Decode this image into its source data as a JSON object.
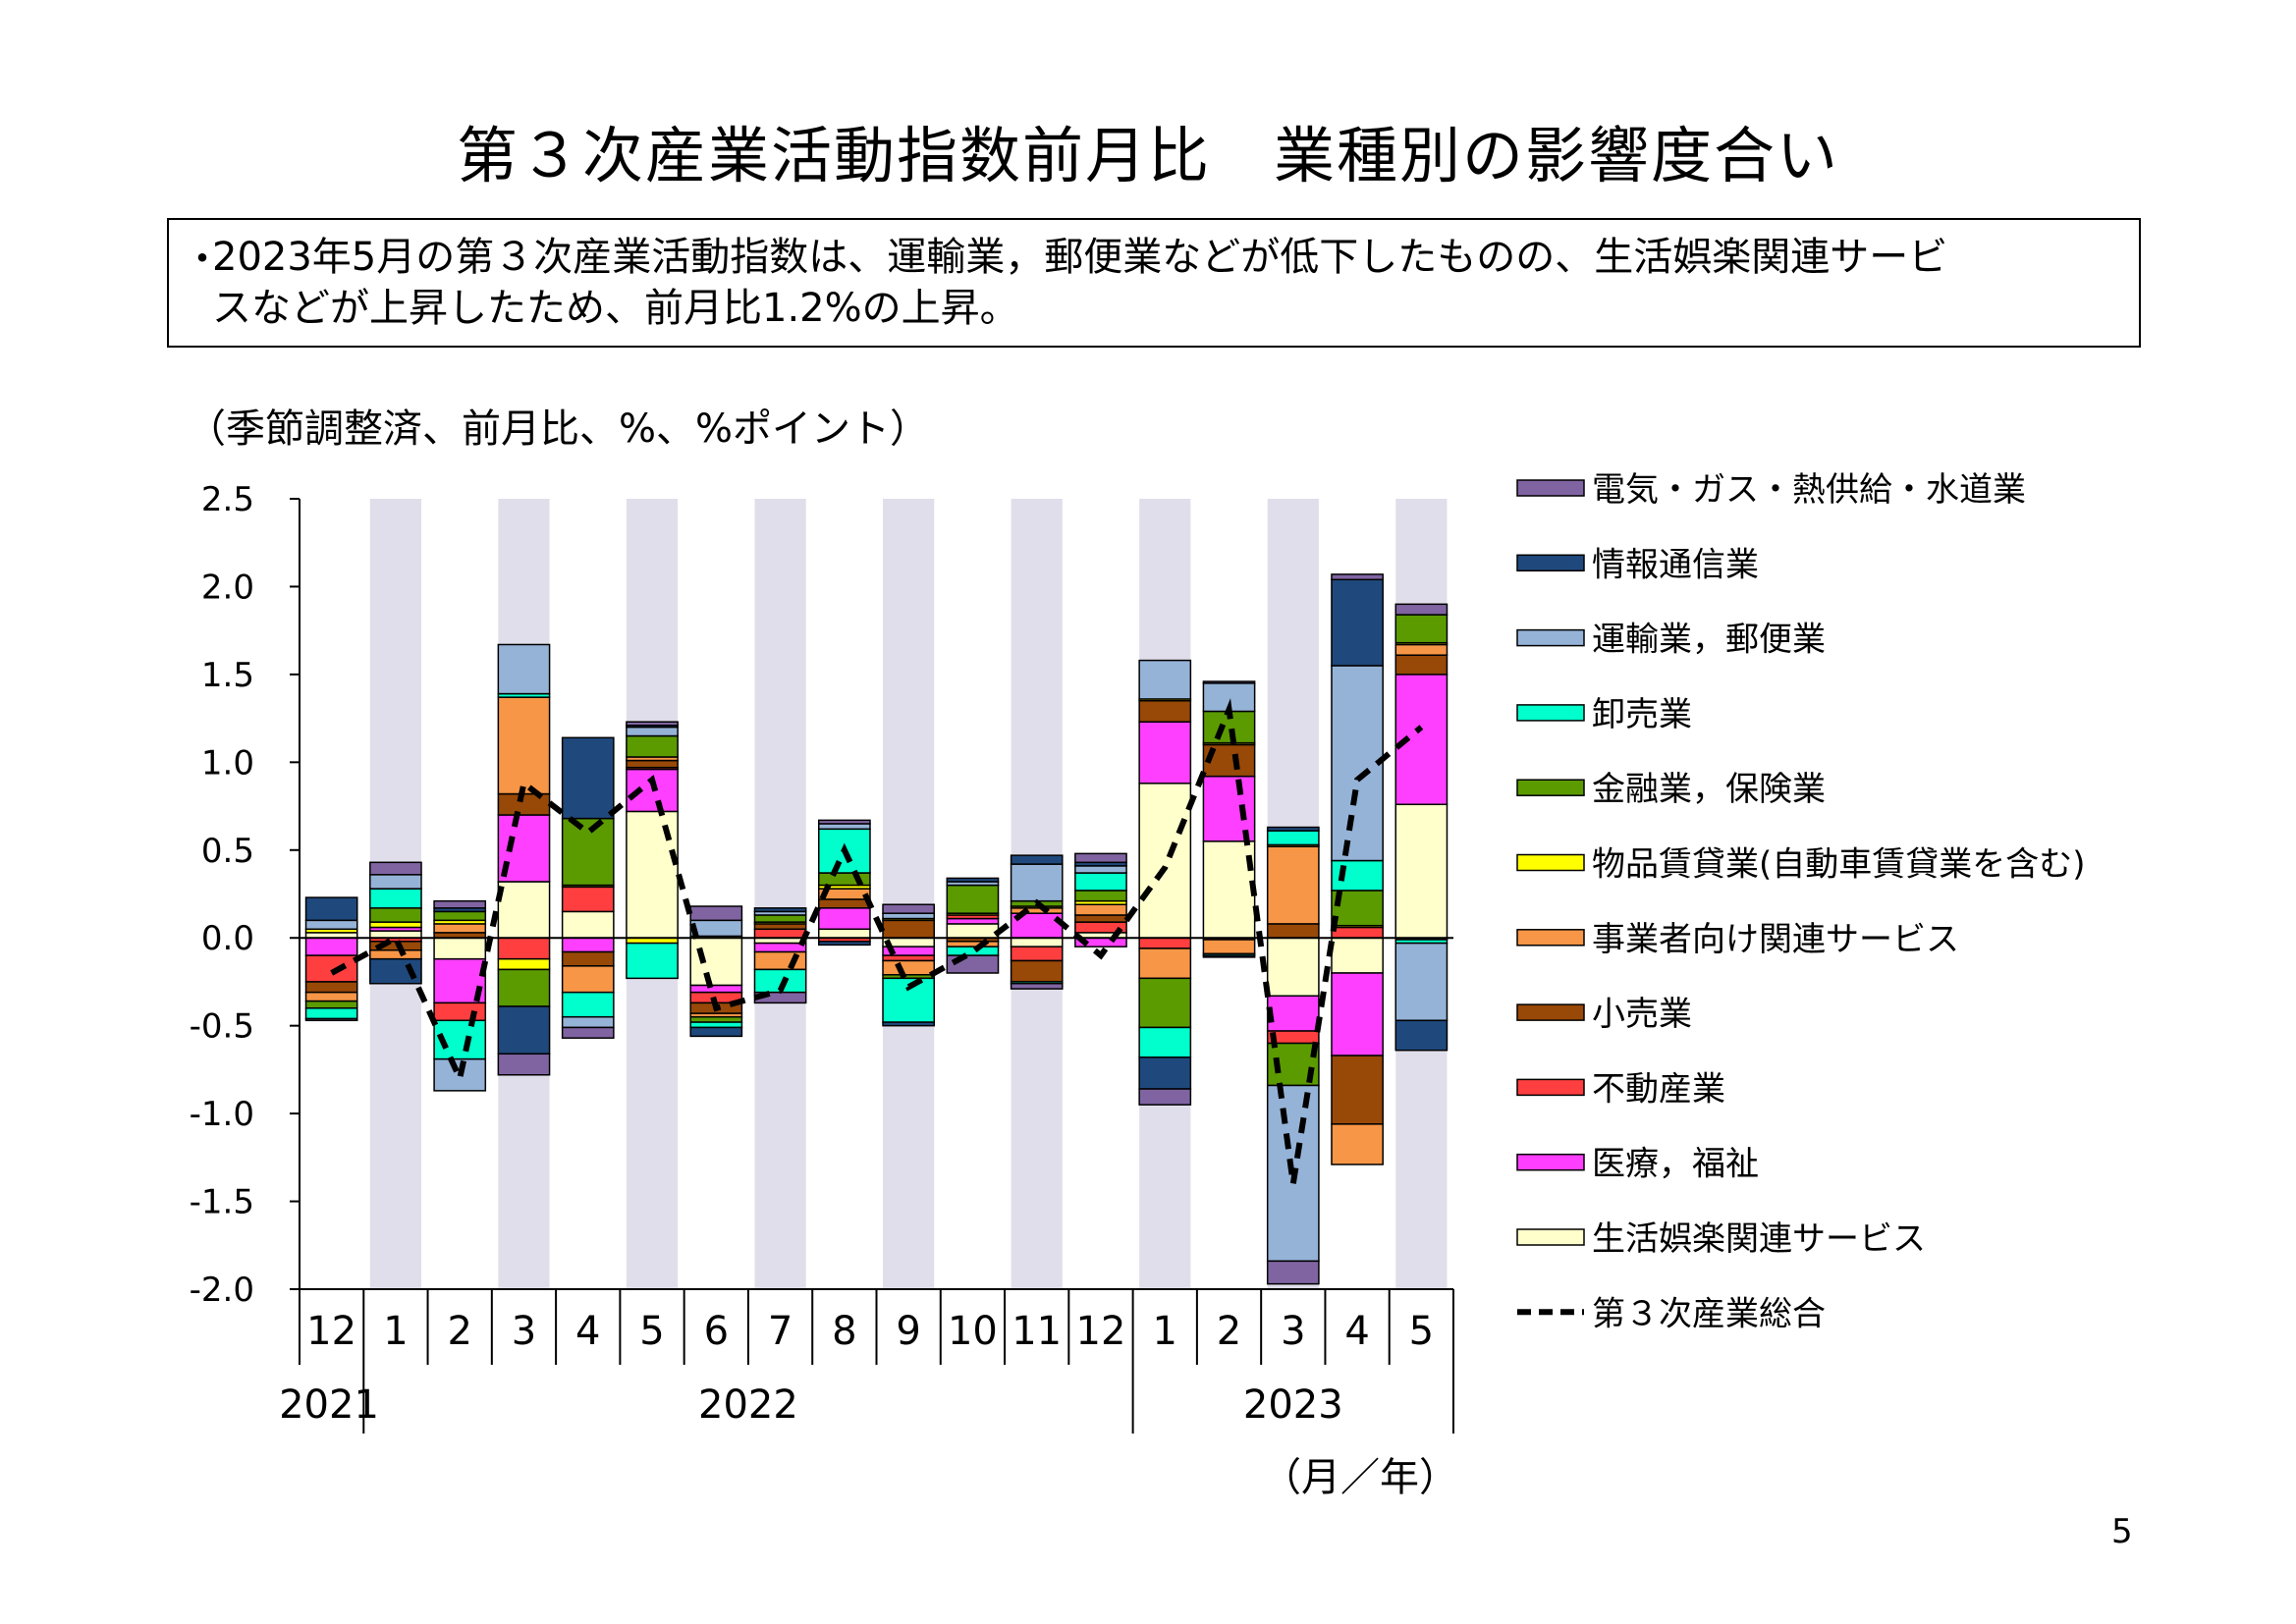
{
  "title": "第３次産業活動指数前月比　業種別の影響度合い",
  "note": {
    "bullet": "・",
    "line1": "2023年5月の第３次産業活動指数は、運輸業，郵便業などが低下したものの、生活娯楽関連サービ",
    "line2": "スなどが上昇したため、前月比1.2%の上昇。"
  },
  "unit_label": "（季節調整済、前月比、%、%ポイント）",
  "page_number": "5",
  "colors": {
    "electric": "#8064a2",
    "info": "#1f497d",
    "transport": "#95b3d7",
    "wholesale": "#00ffcc",
    "finance": "#5b9b00",
    "rental": "#ffff00",
    "business": "#f79646",
    "retail": "#984807",
    "realestate": "#ff3f3f",
    "medical": "#ff3fff",
    "lifestyle": "#ffffcc",
    "total": "#000000",
    "shade": "#e1deeb"
  },
  "chart_data": {
    "type": "bar",
    "stacked": true,
    "title": "",
    "ylabel": "（季節調整済、前月比、%、%ポイント）",
    "xlabel": "（月／年）",
    "ylim": [
      -2.0,
      2.5
    ],
    "yticks": [
      "2.5",
      "2.0",
      "1.5",
      "1.0",
      "0.5",
      "0.0",
      "-0.5",
      "-1.0",
      "-1.5",
      "-2.0"
    ],
    "ytick_values": [
      2.5,
      2.0,
      1.5,
      1.0,
      0.5,
      0.0,
      -0.5,
      -1.0,
      -1.5,
      -2.0
    ],
    "categories": [
      "12",
      "1",
      "2",
      "3",
      "4",
      "5",
      "6",
      "7",
      "8",
      "9",
      "10",
      "11",
      "12",
      "1",
      "2",
      "3",
      "4",
      "5"
    ],
    "years": [
      {
        "label": "2021",
        "start": 0,
        "end": 0
      },
      {
        "label": "2022",
        "start": 1,
        "end": 12
      },
      {
        "label": "2023",
        "start": 13,
        "end": 17
      }
    ],
    "shaded_indices": [
      1,
      3,
      5,
      7,
      9,
      11,
      13,
      15,
      17
    ],
    "x_unit": "（月／年）",
    "series": [
      {
        "key": "lifestyle",
        "name": "生活娯楽関連サービス",
        "values": [
          0.03,
          0.04,
          -0.12,
          0.32,
          0.15,
          0.72,
          -0.27,
          -0.03,
          0.05,
          -0.05,
          0.08,
          -0.05,
          0.03,
          0.88,
          0.55,
          -0.33,
          -0.2,
          0.76
        ]
      },
      {
        "key": "medical",
        "name": "医療，福祉",
        "values": [
          -0.1,
          0.02,
          -0.25,
          0.38,
          -0.08,
          0.24,
          -0.04,
          -0.05,
          0.12,
          -0.05,
          0.03,
          0.14,
          -0.05,
          0.35,
          0.37,
          -0.2,
          -0.47,
          0.74
        ]
      },
      {
        "key": "realestate",
        "name": "不動産業",
        "values": [
          -0.15,
          -0.02,
          -0.1,
          -0.12,
          0.14,
          0.01,
          -0.06,
          0.05,
          -0.02,
          -0.03,
          0.02,
          -0.08,
          0.06,
          -0.06,
          -0.01,
          -0.07,
          0.06,
          -0.01
        ]
      },
      {
        "key": "retail",
        "name": "小売業",
        "values": [
          -0.06,
          -0.05,
          0.03,
          0.12,
          -0.08,
          0.04,
          -0.06,
          0.03,
          0.05,
          0.1,
          -0.02,
          -0.12,
          0.04,
          0.12,
          0.18,
          0.08,
          -0.39,
          0.11
        ]
      },
      {
        "key": "business",
        "name": "事業者向け関連サービス",
        "values": [
          -0.05,
          -0.05,
          0.05,
          0.55,
          -0.15,
          0.02,
          -0.02,
          -0.1,
          0.06,
          -0.08,
          -0.03,
          0.03,
          0.06,
          -0.17,
          -0.08,
          0.44,
          -0.23,
          0.06
        ]
      },
      {
        "key": "rental",
        "name": "物品賃貸業(自動車賃貸業を含む)",
        "values": [
          0.02,
          0.03,
          0.02,
          -0.06,
          0.01,
          -0.03,
          0.01,
          0.01,
          0.02,
          0.01,
          0.01,
          0.01,
          0.02,
          0.01,
          0.01,
          0.01,
          0.01,
          0.01
        ]
      },
      {
        "key": "finance",
        "name": "金融業，保険業",
        "values": [
          -0.04,
          0.08,
          0.05,
          -0.21,
          0.38,
          0.12,
          -0.03,
          0.04,
          0.07,
          -0.02,
          0.16,
          0.03,
          0.06,
          -0.28,
          0.18,
          -0.24,
          0.2,
          0.16
        ]
      },
      {
        "key": "wholesale",
        "name": "卸売業",
        "values": [
          -0.06,
          0.11,
          -0.22,
          0.02,
          -0.14,
          -0.2,
          -0.03,
          -0.13,
          0.25,
          -0.25,
          -0.05,
          -0.01,
          0.1,
          -0.17,
          -0.01,
          0.08,
          0.17,
          -0.02
        ]
      },
      {
        "key": "transport",
        "name": "運輸業，郵便業",
        "values": [
          0.05,
          0.08,
          -0.18,
          0.28,
          -0.06,
          0.05,
          0.09,
          0.02,
          0.03,
          0.03,
          0.02,
          0.21,
          0.04,
          0.22,
          0.16,
          -1.0,
          1.11,
          -0.44
        ]
      },
      {
        "key": "info",
        "name": "情報通信業",
        "values": [
          0.13,
          -0.14,
          0.02,
          -0.27,
          0.46,
          0.01,
          -0.05,
          0.02,
          -0.02,
          -0.02,
          0.02,
          0.05,
          0.02,
          -0.18,
          -0.01,
          0.02,
          0.49,
          -0.17
        ]
      },
      {
        "key": "electric",
        "name": "電気・ガス・熱供給・水道業",
        "values": [
          -0.01,
          0.07,
          0.04,
          -0.12,
          -0.06,
          0.02,
          0.08,
          -0.06,
          0.02,
          0.05,
          -0.1,
          -0.03,
          0.05,
          -0.09,
          0.01,
          -0.13,
          0.03,
          0.06
        ]
      }
    ],
    "total": {
      "key": "total",
      "name": "第３次産業総合",
      "values": [
        -0.2,
        0.0,
        -0.8,
        0.88,
        0.6,
        0.9,
        -0.4,
        -0.3,
        0.5,
        -0.28,
        -0.08,
        0.2,
        -0.1,
        0.4,
        1.3,
        -1.4,
        0.9,
        1.2
      ]
    },
    "legend": [
      {
        "key": "electric",
        "label": "電気・ガス・熱供給・水道業"
      },
      {
        "key": "info",
        "label": "情報通信業"
      },
      {
        "key": "transport",
        "label": "運輸業，郵便業"
      },
      {
        "key": "wholesale",
        "label": "卸売業"
      },
      {
        "key": "finance",
        "label": "金融業，保険業"
      },
      {
        "key": "rental",
        "label": "物品賃貸業(自動車賃貸業を含む)"
      },
      {
        "key": "business",
        "label": "事業者向け関連サービス"
      },
      {
        "key": "retail",
        "label": "小売業"
      },
      {
        "key": "realestate",
        "label": "不動産業"
      },
      {
        "key": "medical",
        "label": "医療，福祉"
      },
      {
        "key": "lifestyle",
        "label": "生活娯楽関連サービス"
      },
      {
        "key": "total",
        "label": "第３次産業総合"
      }
    ],
    "legend_position": "right"
  }
}
